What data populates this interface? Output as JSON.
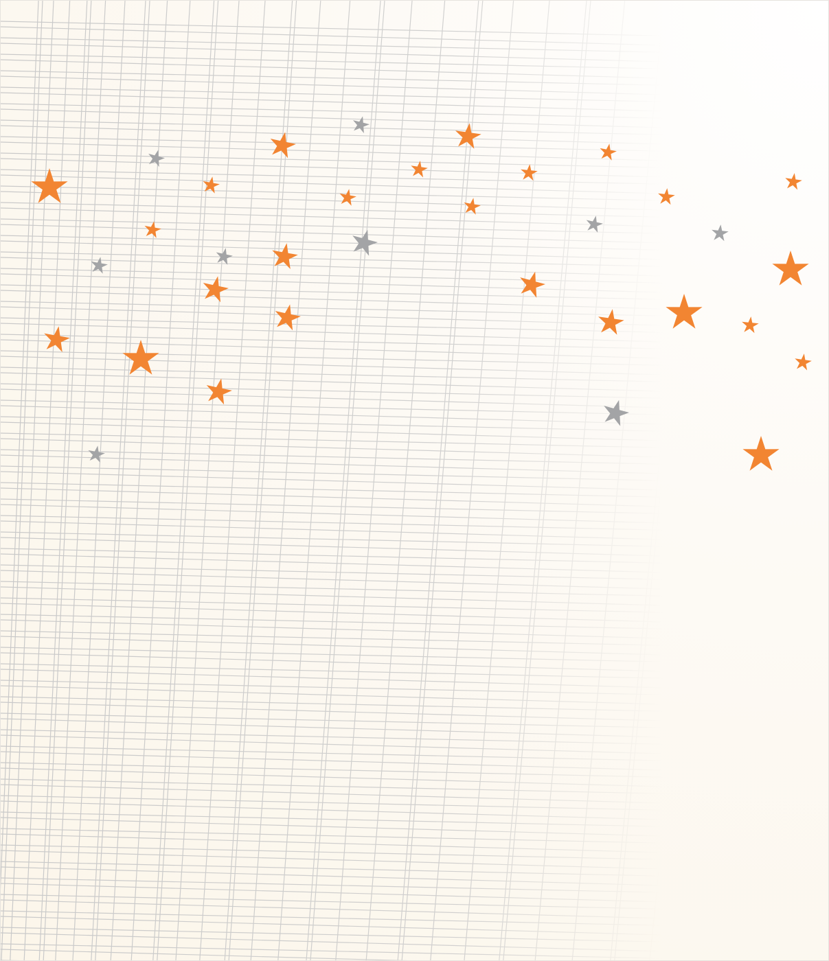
{
  "colors": {
    "background": "#fcf6ea",
    "grid_line": "#c9c9c9",
    "star_orange": "#f28532",
    "star_gray": "#a3a4a6"
  },
  "decoration": {
    "grid": "perspective-grid",
    "stars": "scattered-stars",
    "star_colors": [
      "orange",
      "gray"
    ]
  }
}
